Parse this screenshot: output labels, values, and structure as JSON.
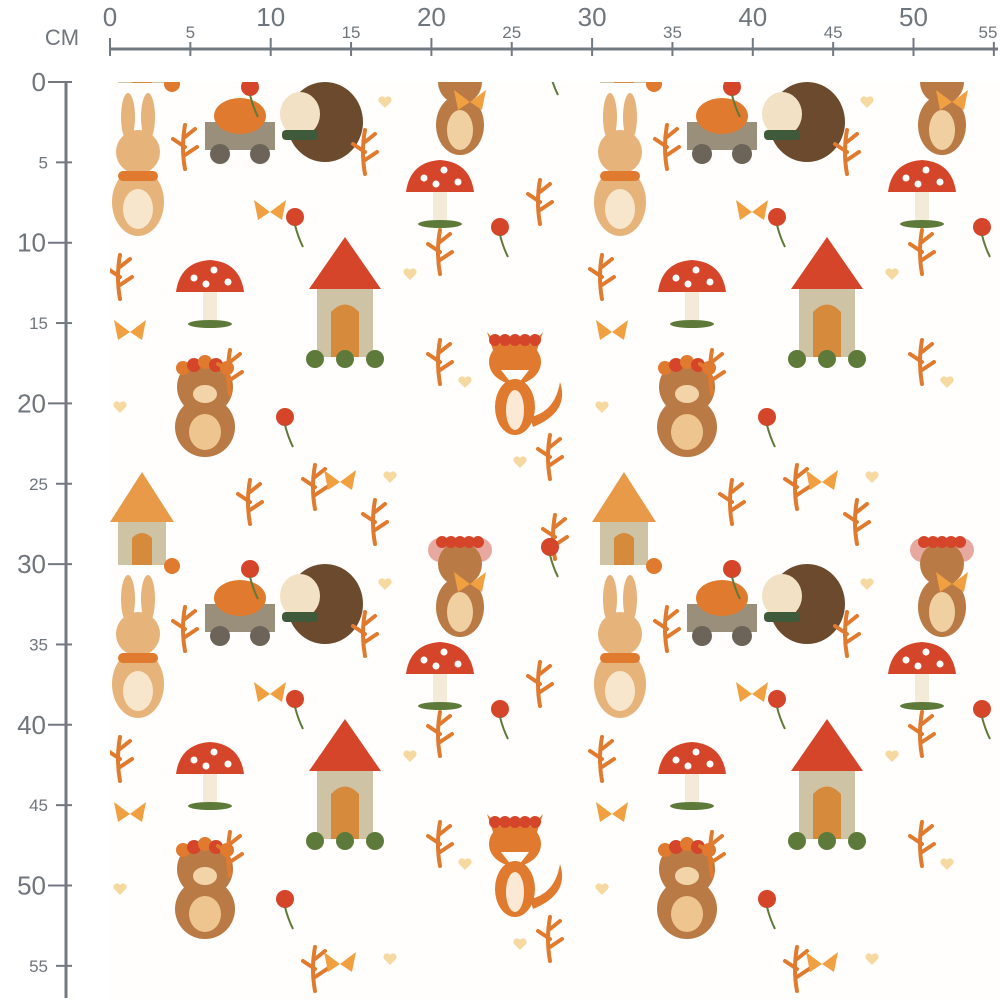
{
  "ruler": {
    "unit": "CM",
    "color": "#737980",
    "top_major_labels": [
      "0",
      "10",
      "20",
      "30",
      "40",
      "50"
    ],
    "top_minor_labels": [
      "5",
      "15",
      "25",
      "35",
      "45",
      "55"
    ],
    "left_major_labels": [
      "0",
      "10",
      "20",
      "30",
      "40",
      "50"
    ],
    "left_minor_labels": [
      "5",
      "15",
      "25",
      "35",
      "45",
      "55"
    ]
  },
  "fabric": {
    "background": "#fffefc",
    "motifs": [
      "hedgehog-with-pumpkin-cart",
      "bunny",
      "mushroom",
      "fairy-house",
      "fox",
      "bear",
      "small-house",
      "mouse",
      "autumn-leaf",
      "butterfly",
      "heart",
      "flower"
    ],
    "colors": {
      "orange": "#e07a2e",
      "red": "#d4452a",
      "brown": "#b97a45",
      "tan": "#e6b37a",
      "green": "#5e7a3a",
      "stone": "#cfc3a6"
    }
  }
}
